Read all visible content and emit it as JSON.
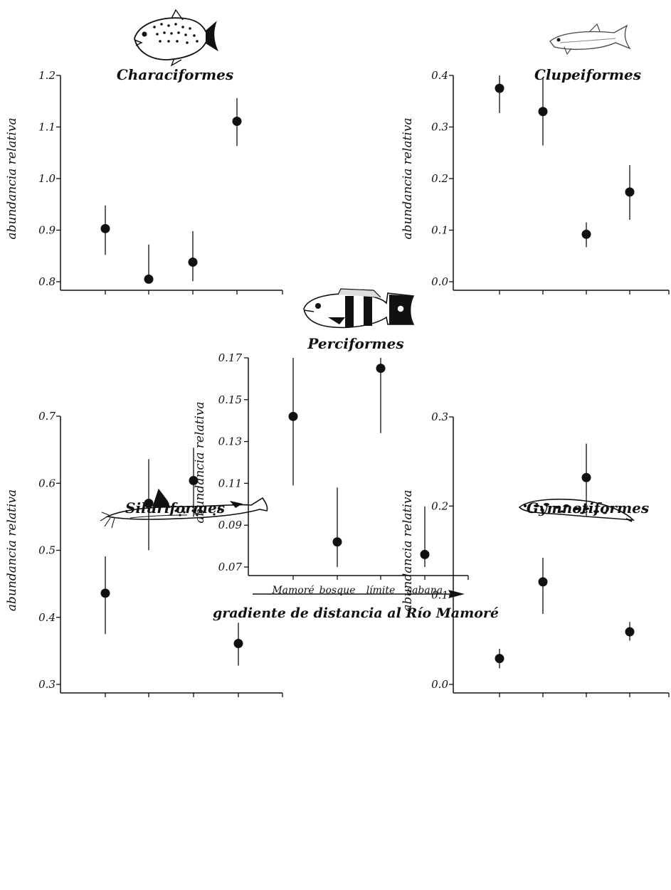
{
  "categories": [
    "Mamoré",
    "bosque",
    "límite",
    "sabana"
  ],
  "ylabel": "abundancia relativa",
  "gradient_label": "gradiente de distancia al Río Mamoré",
  "chart_data": [
    {
      "type": "scatter",
      "title": "Characiformes",
      "icon": "piranha-fish-icon",
      "ylabel": "abundancia relativa",
      "categories": [
        "Mamoré",
        "bosque",
        "límite",
        "sabana"
      ],
      "show_category_labels": false,
      "ylim": [
        0.8,
        1.2
      ],
      "yticks": [
        0.8,
        0.9,
        1.0,
        1.1,
        1.2
      ],
      "ytick_labels": [
        "0.8",
        "0.9",
        "1.0",
        "1.1",
        "1.2"
      ],
      "values": [
        0.903,
        0.805,
        0.838,
        1.111
      ],
      "err_low": [
        0.852,
        0.805,
        0.801,
        1.063
      ],
      "err_high": [
        0.948,
        0.872,
        0.898,
        1.156
      ]
    },
    {
      "type": "scatter",
      "title": "Clupeiformes",
      "icon": "herring-fish-icon",
      "ylabel": "abundancia relativa",
      "categories": [
        "Mamoré",
        "bosque",
        "límite",
        "sabana"
      ],
      "show_category_labels": false,
      "ylim": [
        0.0,
        0.4
      ],
      "yticks": [
        0.0,
        0.1,
        0.2,
        0.3,
        0.4
      ],
      "ytick_labels": [
        "0.0",
        "0.1",
        "0.2",
        "0.3",
        "0.4"
      ],
      "values": [
        0.375,
        0.33,
        0.092,
        0.174
      ],
      "err_low": [
        0.327,
        0.264,
        0.067,
        0.12
      ],
      "err_high": [
        0.4,
        0.396,
        0.115,
        0.226
      ]
    },
    {
      "type": "scatter",
      "title": "Perciformes",
      "icon": "cichlid-fish-icon",
      "ylabel": "abundancia relativa",
      "categories": [
        "Mamoré",
        "bosque",
        "límite",
        "sabana"
      ],
      "show_category_labels": true,
      "ylim": [
        0.07,
        0.17
      ],
      "yticks": [
        0.07,
        0.09,
        0.11,
        0.13,
        0.15,
        0.17
      ],
      "ytick_labels": [
        "0.07",
        "0.09",
        "0.11",
        "0.13",
        "0.15",
        "0.17"
      ],
      "values": [
        0.142,
        0.082,
        0.165,
        0.076
      ],
      "err_low": [
        0.109,
        0.07,
        0.134,
        0.07
      ],
      "err_high": [
        0.17,
        0.108,
        0.17,
        0.099
      ]
    },
    {
      "type": "scatter",
      "title": "Siluriformes",
      "icon": "catfish-icon",
      "ylabel": "abundancia relativa",
      "categories": [
        "Mamoré",
        "bosque",
        "límite",
        "sabana"
      ],
      "show_category_labels": false,
      "ylim": [
        0.3,
        0.7
      ],
      "yticks": [
        0.3,
        0.4,
        0.5,
        0.6,
        0.7
      ],
      "ytick_labels": [
        "0.3",
        "0.4",
        "0.5",
        "0.6",
        "0.7"
      ],
      "values": [
        0.436,
        0.57,
        0.604,
        0.361
      ],
      "err_low": [
        0.375,
        0.5,
        0.55,
        0.328
      ],
      "err_high": [
        0.491,
        0.636,
        0.653,
        0.392
      ]
    },
    {
      "type": "scatter",
      "title": "Gymnotiformes",
      "icon": "knifefish-icon",
      "ylabel": "abundancia relativa",
      "categories": [
        "Mamoré",
        "bosque",
        "límite",
        "sabana"
      ],
      "show_category_labels": false,
      "ylim": [
        0.0,
        0.3
      ],
      "yticks": [
        0.0,
        0.1,
        0.2,
        0.3
      ],
      "ytick_labels": [
        "0.0",
        "0.1",
        "0.2",
        "0.3"
      ],
      "values": [
        0.029,
        0.115,
        0.232,
        0.059
      ],
      "err_low": [
        0.018,
        0.079,
        0.188,
        0.049
      ],
      "err_high": [
        0.04,
        0.142,
        0.27,
        0.07
      ]
    }
  ]
}
